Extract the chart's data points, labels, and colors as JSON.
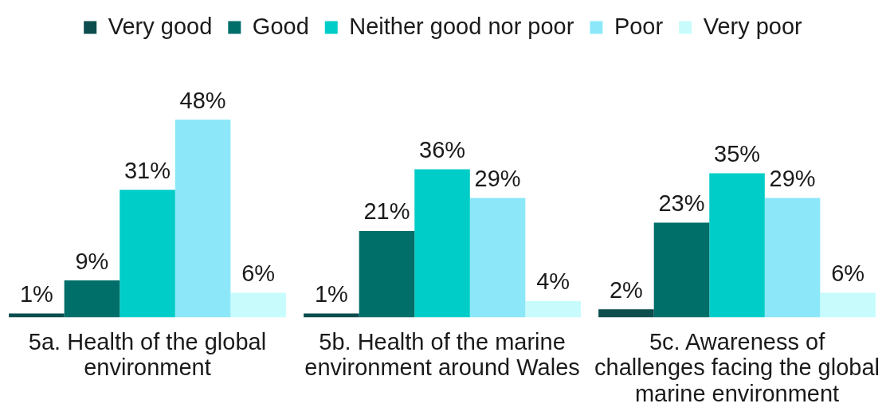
{
  "chart_data": {
    "type": "bar",
    "categories": [
      "5a. Health of the global environment",
      "5b. Health of the marine environment around Wales",
      "5c. Awareness of challenges facing the global marine environment"
    ],
    "series": [
      {
        "name": "Very good",
        "color": "#0d4d4d",
        "values": [
          1,
          1,
          2
        ],
        "value_labels": [
          "1%",
          "1%",
          "2%"
        ]
      },
      {
        "name": "Good",
        "color": "#006e69",
        "values": [
          9,
          21,
          23
        ],
        "value_labels": [
          "9%",
          "21%",
          "23%"
        ]
      },
      {
        "name": "Neither good nor poor",
        "color": "#00cdc8",
        "values": [
          31,
          36,
          35
        ],
        "value_labels": [
          "31%",
          "36%",
          "35%"
        ]
      },
      {
        "name": "Poor",
        "color": "#8ce8f8",
        "values": [
          48,
          29,
          29
        ],
        "value_labels": [
          "48%",
          "29%",
          "29%"
        ]
      },
      {
        "name": "Very poor",
        "color": "#c8fcfc",
        "values": [
          6,
          4,
          6
        ],
        "value_labels": [
          "6%",
          "4%",
          "6%"
        ]
      }
    ],
    "tick_labels": "x",
    "legend": "top"
  }
}
